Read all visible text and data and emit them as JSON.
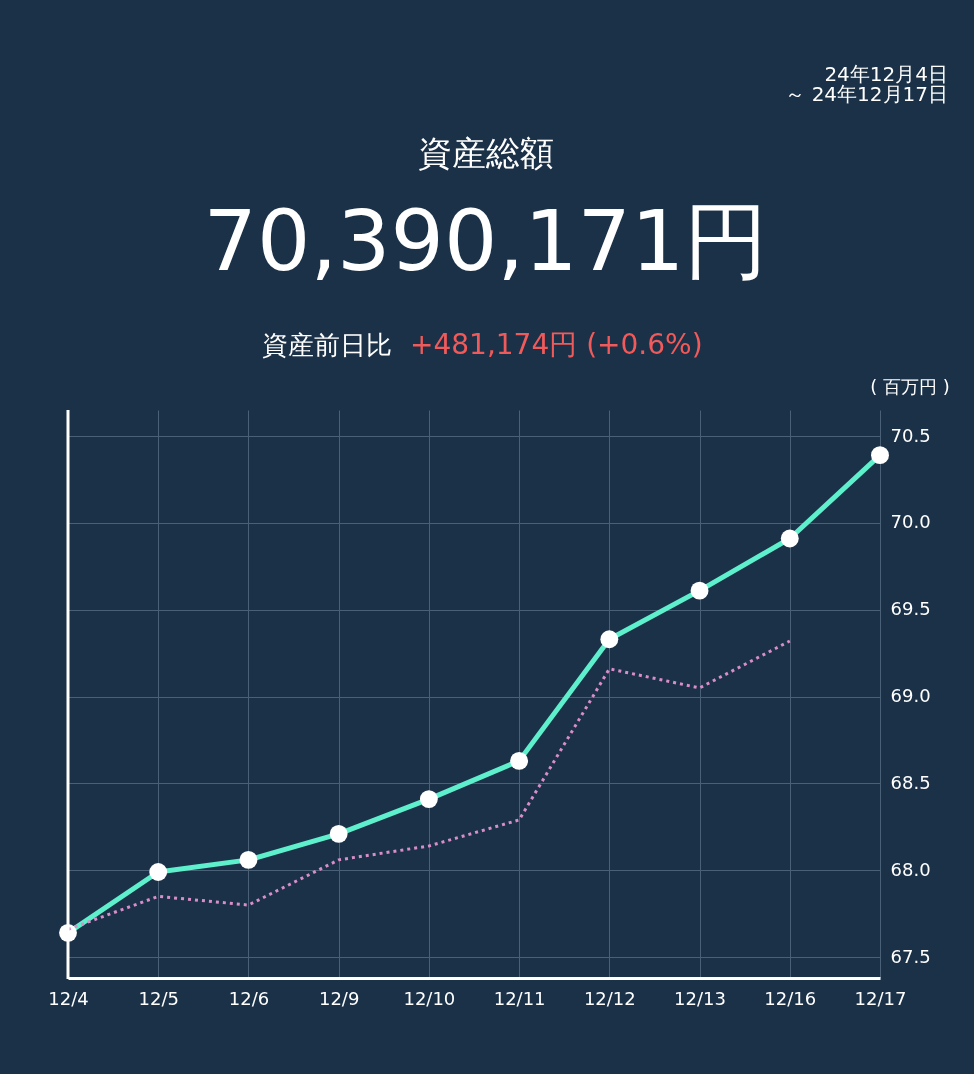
{
  "chart_data": {
    "type": "line",
    "title": "資産総額",
    "subtitle": "70,390,171円",
    "ylabel": "( 百万円 )",
    "annotations": [
      "24年12月4日",
      "～ 24年12月17日",
      "資産前日比",
      "+481,174円 (+0.6%)"
    ],
    "categories": [
      "12/4",
      "12/5",
      "12/6",
      "12/9",
      "12/10",
      "12/11",
      "12/12",
      "12/13",
      "12/16",
      "12/17"
    ],
    "series": [
      {
        "color": "#5ef0cc",
        "marker": "circle",
        "line_style": "solid",
        "values": [
          67.64,
          67.99,
          68.06,
          68.21,
          68.41,
          68.63,
          69.33,
          69.61,
          69.91,
          70.39
        ]
      },
      {
        "color": "#d98ecb",
        "marker": "none",
        "line_style": "dotted",
        "values": [
          67.66,
          67.85,
          67.8,
          68.06,
          68.14,
          68.29,
          69.16,
          69.05,
          69.32,
          null
        ]
      }
    ],
    "ylim": [
      67.38,
      70.65
    ],
    "yticks": [
      {
        "value": 67.5,
        "label": "67.5"
      },
      {
        "value": 68.0,
        "label": "68.0"
      },
      {
        "value": 68.5,
        "label": "68.5"
      },
      {
        "value": 69.0,
        "label": "69.0"
      },
      {
        "value": 69.5,
        "label": "69.5"
      },
      {
        "value": 70.0,
        "label": "70.0"
      },
      {
        "value": 70.5,
        "label": "70.5"
      }
    ],
    "grid": true
  }
}
